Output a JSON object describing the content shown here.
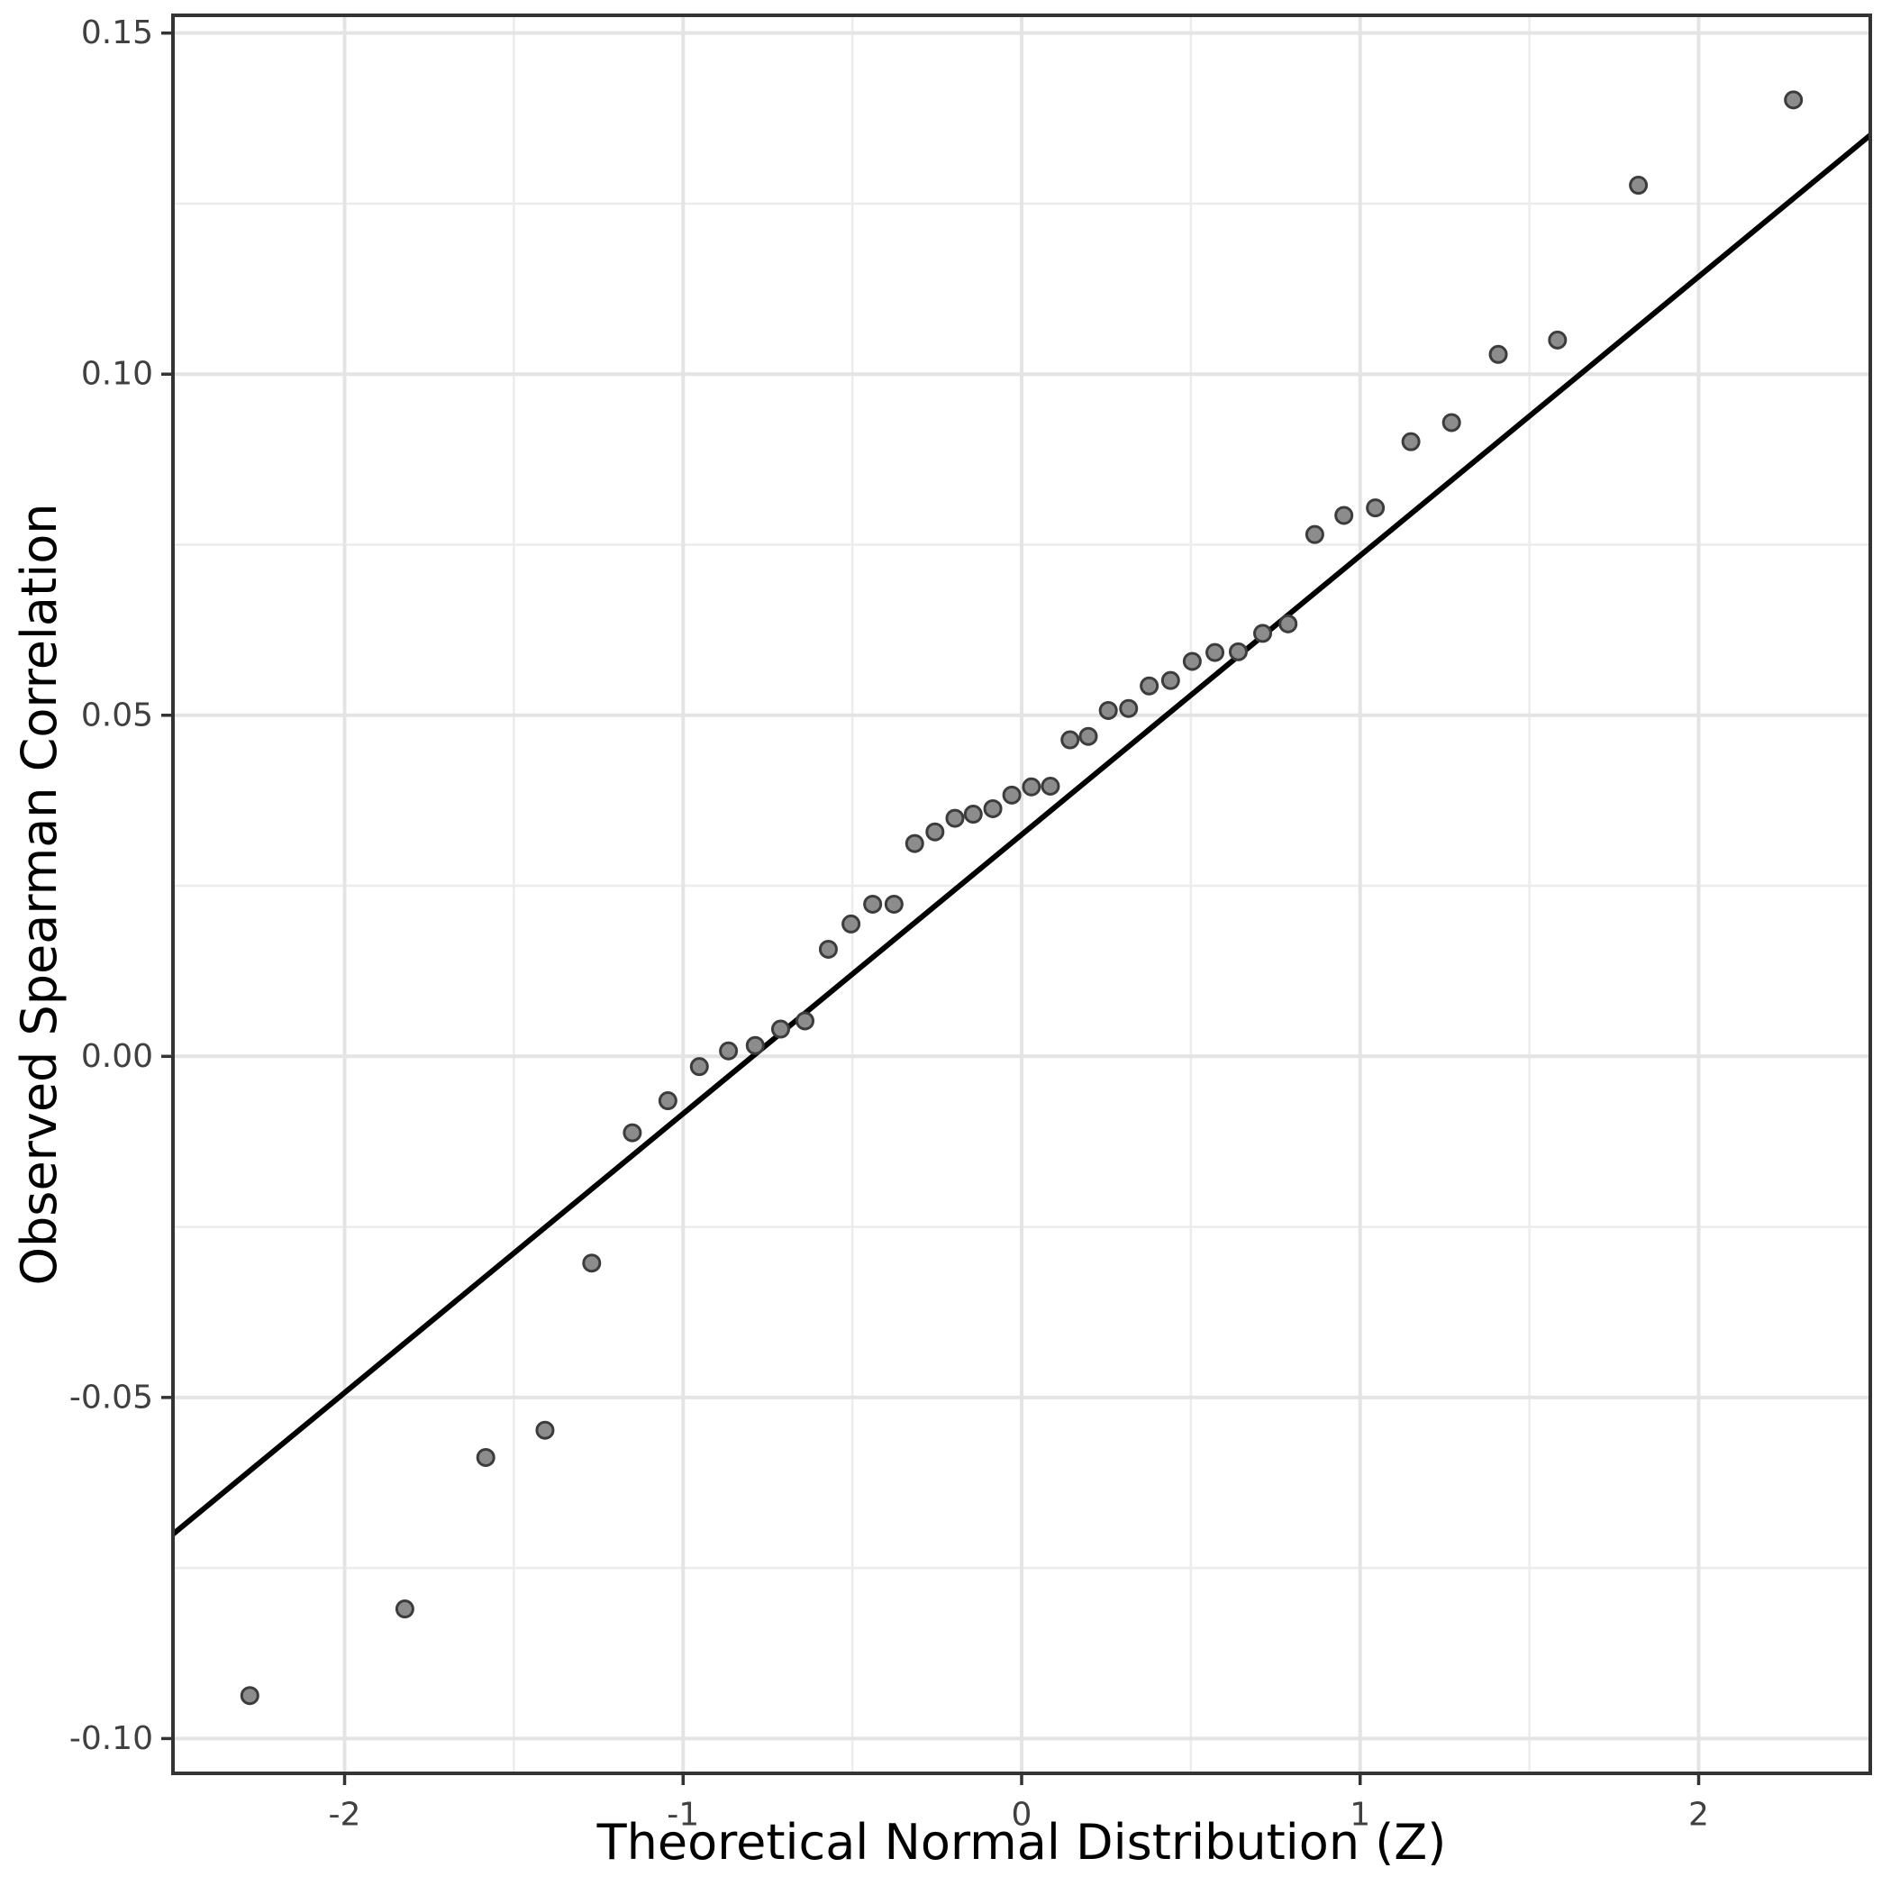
{
  "chart_data": {
    "type": "scatter",
    "title": "",
    "xlabel": "Theoretical Normal Distribution (Z)",
    "ylabel": "Observed Spearman Correlation",
    "xlim": [
      -2.507,
      2.507
    ],
    "ylim": [
      -0.1051,
      0.1526
    ],
    "grid": "major+minor",
    "legend": false,
    "x_ticks": [
      {
        "value": -2,
        "label": "-2"
      },
      {
        "value": -1,
        "label": "-1"
      },
      {
        "value": 0,
        "label": "0"
      },
      {
        "value": 1,
        "label": "1"
      },
      {
        "value": 2,
        "label": "2"
      }
    ],
    "y_ticks": [
      {
        "value": 0.15,
        "label": "0.15"
      },
      {
        "value": 0.1,
        "label": "0.10"
      },
      {
        "value": 0.05,
        "label": "0.05"
      },
      {
        "value": 0.0,
        "label": "0.00"
      },
      {
        "value": -0.05,
        "label": "-0.05"
      },
      {
        "value": -0.1,
        "label": "-0.10"
      }
    ],
    "x_minor_ticks": [
      -1.5,
      -0.5,
      0.5,
      1.5
    ],
    "y_minor_ticks": [
      0.125,
      0.075,
      0.025,
      -0.025,
      -0.075
    ],
    "reference_line": {
      "slope": 0.0409,
      "intercept": 0.0325,
      "color": "#000000",
      "width": 6
    },
    "points": [
      [
        -2.28,
        -0.0937
      ],
      [
        -1.822,
        -0.081
      ],
      [
        -1.583,
        -0.0588
      ],
      [
        -1.408,
        -0.0548
      ],
      [
        -1.27,
        -0.0303
      ],
      [
        -1.15,
        -0.0112
      ],
      [
        -1.045,
        -0.0065
      ],
      [
        -0.952,
        -0.0015
      ],
      [
        -0.866,
        0.0008
      ],
      [
        -0.787,
        0.0016
      ],
      [
        -0.712,
        0.004
      ],
      [
        -0.64,
        0.0052
      ],
      [
        -0.571,
        0.0157
      ],
      [
        -0.504,
        0.0194
      ],
      [
        -0.44,
        0.0223
      ],
      [
        -0.377,
        0.0223
      ],
      [
        -0.316,
        0.0312
      ],
      [
        -0.256,
        0.0329
      ],
      [
        -0.197,
        0.0349
      ],
      [
        -0.143,
        0.0355
      ],
      [
        -0.085,
        0.0363
      ],
      [
        -0.029,
        0.0383
      ],
      [
        0.029,
        0.0395
      ],
      [
        0.085,
        0.0396
      ],
      [
        0.143,
        0.0464
      ],
      [
        0.197,
        0.0469
      ],
      [
        0.256,
        0.0507
      ],
      [
        0.316,
        0.051
      ],
      [
        0.377,
        0.0543
      ],
      [
        0.44,
        0.0551
      ],
      [
        0.504,
        0.0579
      ],
      [
        0.571,
        0.0592
      ],
      [
        0.64,
        0.0593
      ],
      [
        0.712,
        0.062
      ],
      [
        0.787,
        0.0634
      ],
      [
        0.866,
        0.0765
      ],
      [
        0.952,
        0.0793
      ],
      [
        1.045,
        0.0804
      ],
      [
        1.15,
        0.0901
      ],
      [
        1.27,
        0.0929
      ],
      [
        1.408,
        0.1029
      ],
      [
        1.583,
        0.105
      ],
      [
        1.822,
        0.1277
      ],
      [
        2.28,
        0.1402
      ]
    ],
    "style": {
      "background": "#FFFFFF",
      "point_fill": "#8C8C8C",
      "point_stroke": "#3C3C3C",
      "point_radius": 9,
      "grid_major_color": "#E4E4E4",
      "grid_minor_color": "#ECECEC",
      "panel_border_color": "#333333",
      "tick_color": "#333333",
      "tick_label_color": "#404040",
      "axis_title_color": "#000000"
    }
  }
}
